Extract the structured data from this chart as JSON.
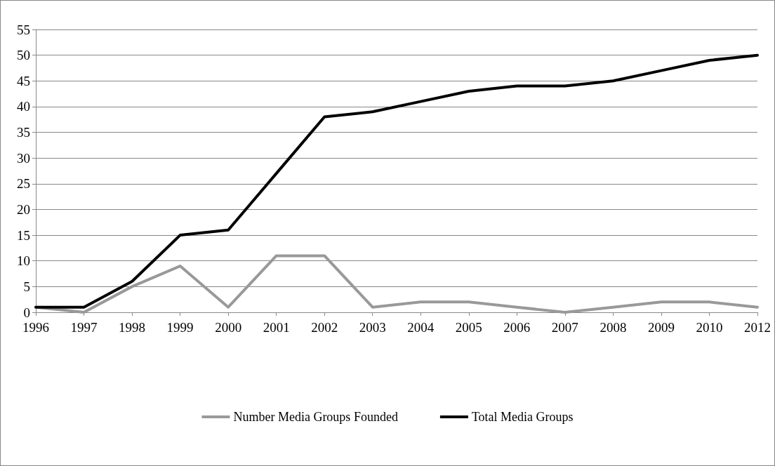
{
  "chart_data": {
    "type": "line",
    "categories": [
      "1996",
      "1997",
      "1998",
      "1999",
      "2000",
      "2001",
      "2002",
      "2003",
      "2004",
      "2005",
      "2006",
      "2007",
      "2008",
      "2009",
      "2010",
      "2012"
    ],
    "series": [
      {
        "name": "Number Media Groups Founded",
        "color": "#999999",
        "values": [
          1,
          0,
          5,
          9,
          1,
          11,
          11,
          1,
          2,
          2,
          1,
          0,
          1,
          2,
          2,
          1
        ]
      },
      {
        "name": "Total Media Groups",
        "color": "#000000",
        "values": [
          1,
          1,
          6,
          15,
          16,
          27,
          38,
          39,
          41,
          43,
          44,
          44,
          45,
          47,
          49,
          50
        ]
      }
    ],
    "ylim": [
      0,
      55
    ],
    "yticks": [
      0,
      5,
      10,
      15,
      20,
      25,
      30,
      35,
      40,
      45,
      50,
      55
    ],
    "grid": "y",
    "legend": "bottom",
    "marker": "none",
    "line_style": "solid"
  }
}
